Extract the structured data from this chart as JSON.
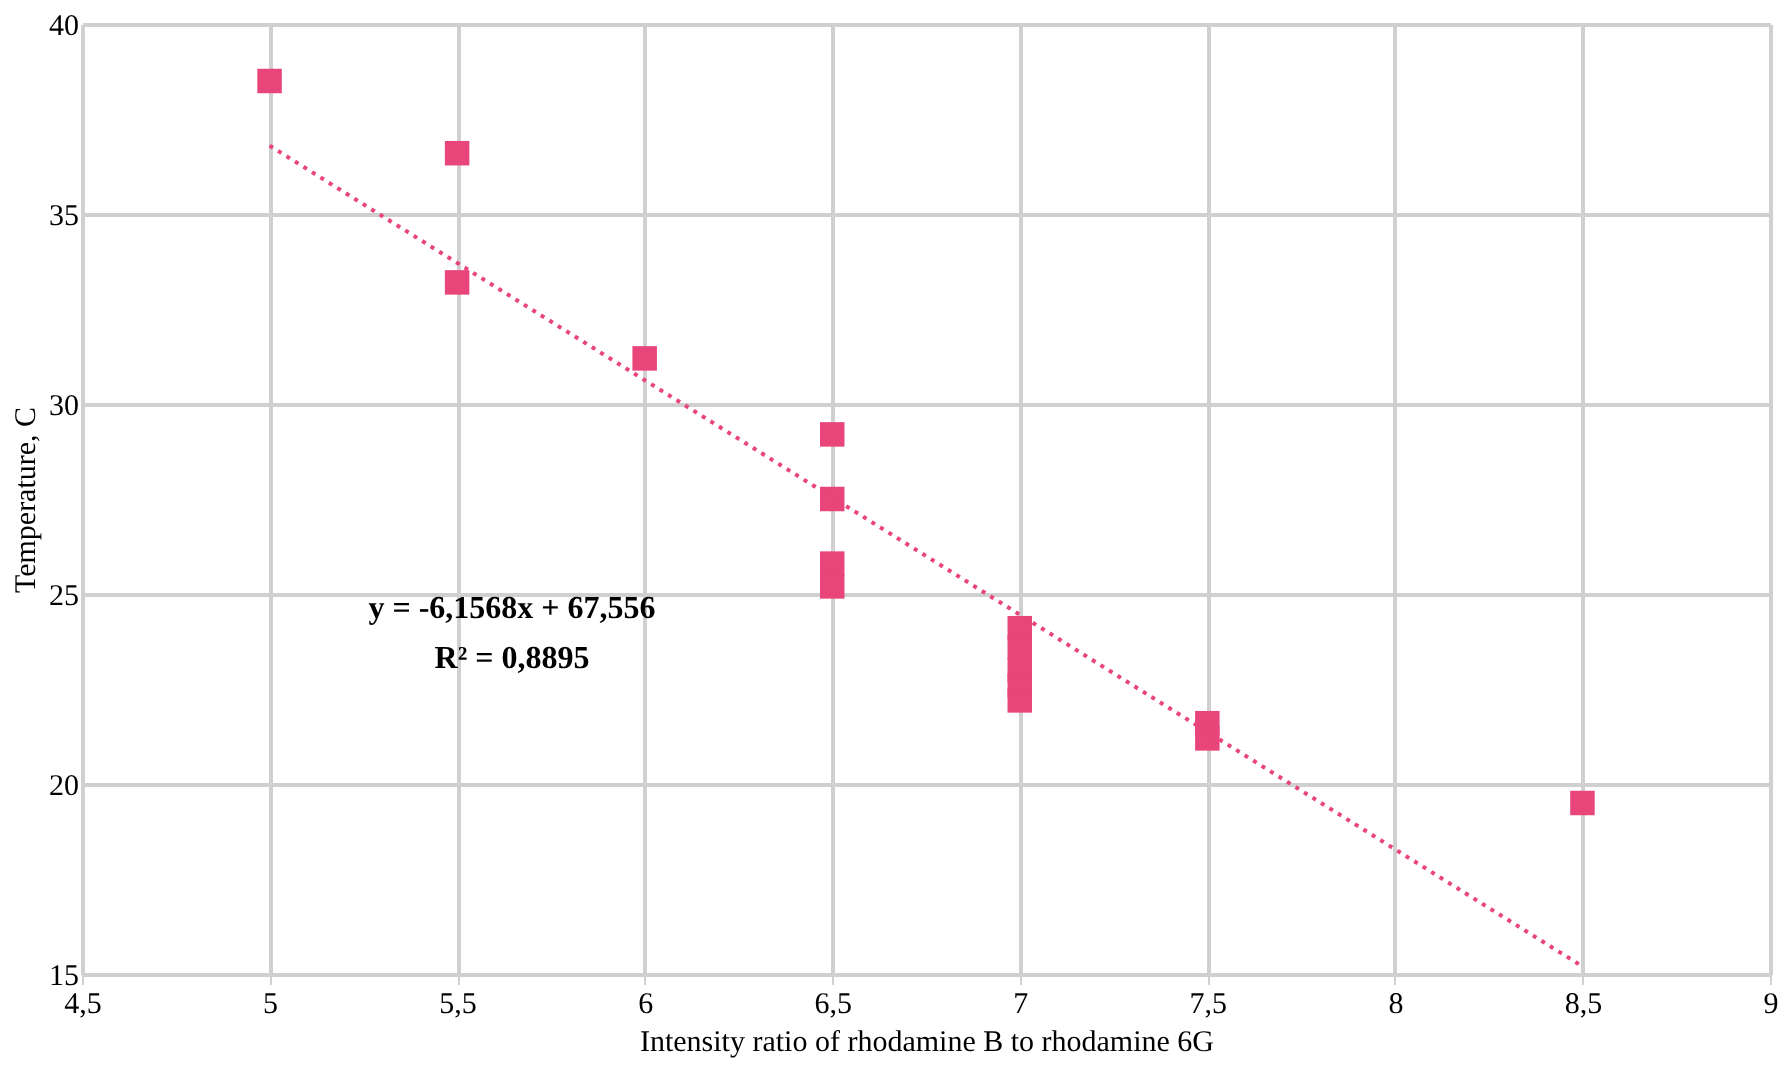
{
  "chart_data": {
    "type": "scatter",
    "xlabel": "Intensity ratio of rhodamine B to rhodamine 6G",
    "ylabel": "Temperature, C",
    "series": [
      {
        "color": "#e8457a",
        "marker": "square",
        "x": [
          5,
          5.5,
          5.5,
          6,
          6.5,
          6.5,
          6.5,
          6.5,
          7,
          7,
          7,
          7,
          7,
          7.5,
          7.5,
          8.5
        ],
        "values": [
          38.5,
          36.6,
          33.2,
          31.2,
          29.2,
          27.5,
          25.8,
          25.2,
          24.1,
          23.6,
          23.0,
          22.6,
          22.2,
          21.6,
          21.2,
          19.5
        ]
      },
      {
        "type": "line",
        "color": "#e8457a",
        "line_style": "dotted",
        "marker": "none",
        "x": [
          5,
          8.5
        ],
        "values": [
          36.8,
          15.2
        ]
      }
    ],
    "xlim": [
      4.5,
      9
    ],
    "xticks": [
      {
        "value": 4.5,
        "label": "4,5"
      },
      5,
      {
        "value": 5.5,
        "label": "5,5"
      },
      6,
      {
        "value": 6.5,
        "label": "6,5"
      },
      7,
      {
        "value": 7.5,
        "label": "7,5"
      },
      8,
      {
        "value": 8.5,
        "label": "8,5"
      },
      9
    ],
    "ylim": [
      15,
      40
    ],
    "yticks": [
      15,
      20,
      25,
      30,
      35,
      40
    ],
    "grid": true,
    "annotations": [
      "y = -6,1568x + 67,556",
      "R² = 0,8895"
    ]
  }
}
